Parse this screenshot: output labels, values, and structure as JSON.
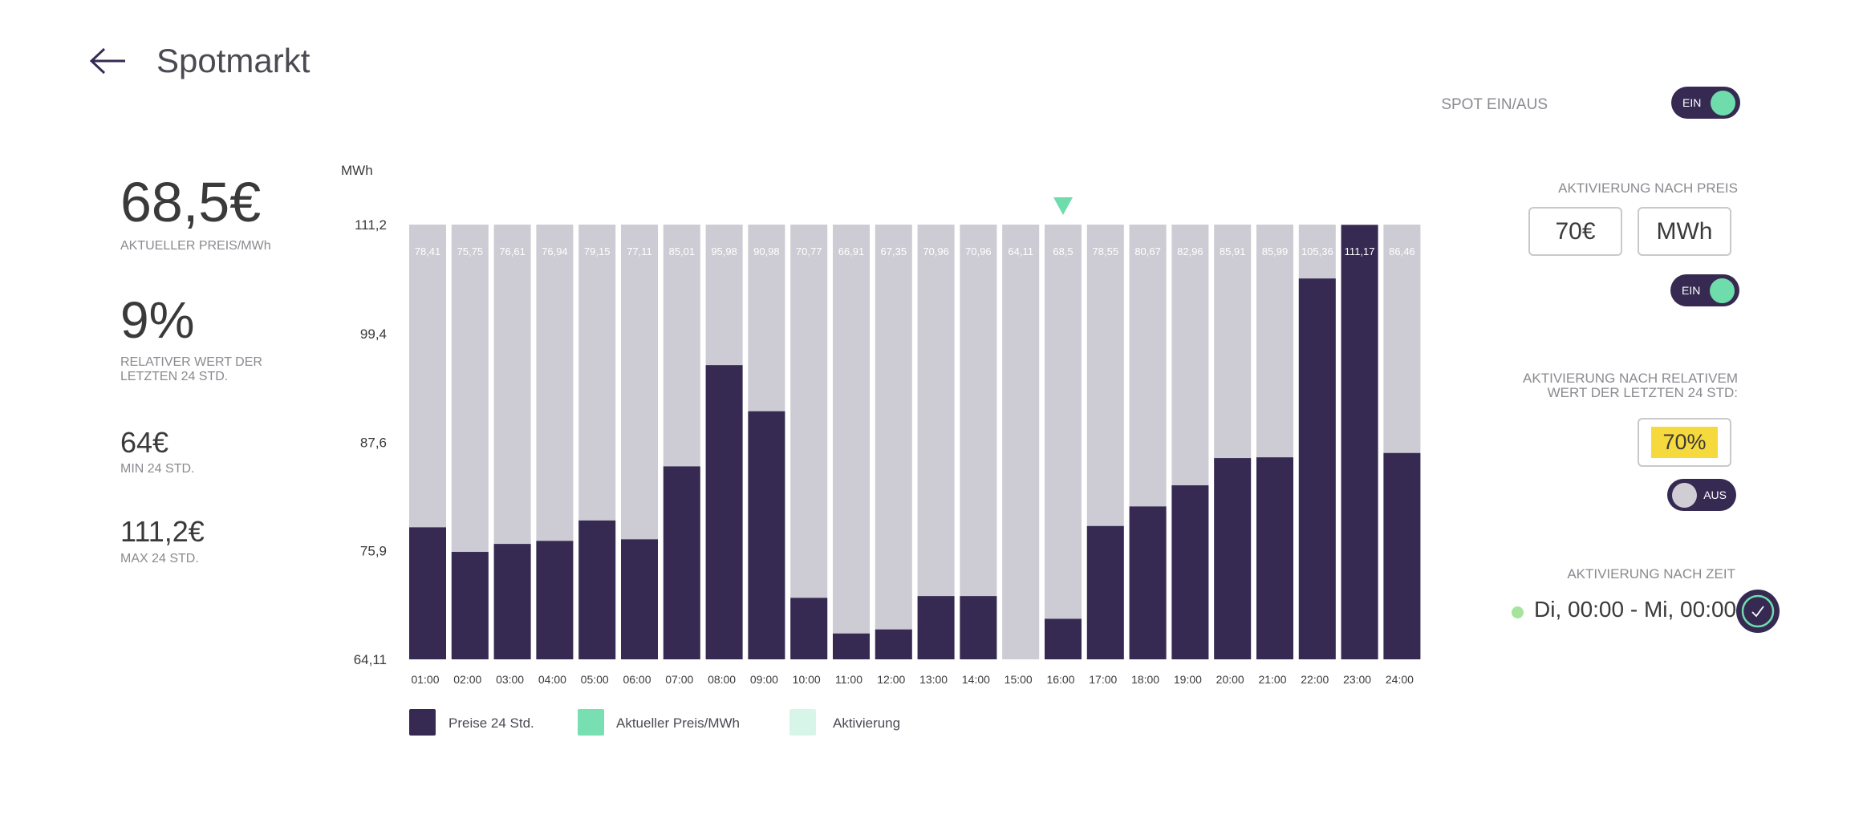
{
  "header": {
    "title": "Spotmarkt"
  },
  "stats": {
    "current_price": {
      "value": "68,5€",
      "label": "AKTUELLER PREIS/MWh"
    },
    "relative": {
      "value": "9%",
      "label_line1": "RELATIVER WERT DER",
      "label_line2": "LETZTEN 24 STD."
    },
    "min": {
      "value": "64€",
      "label": "MIN 24 STD."
    },
    "max": {
      "value": "111,2€",
      "label": "MAX 24 STD."
    }
  },
  "chart_data": {
    "type": "bar",
    "ylabel": "MWh",
    "ylim": [
      64.11,
      111.2
    ],
    "y_ticks": [
      "111,2",
      "99,4",
      "87,6",
      "75,9",
      "64,11"
    ],
    "categories": [
      "01:00",
      "02:00",
      "03:00",
      "04:00",
      "05:00",
      "06:00",
      "07:00",
      "08:00",
      "09:00",
      "10:00",
      "11:00",
      "12:00",
      "13:00",
      "14:00",
      "15:00",
      "16:00",
      "17:00",
      "18:00",
      "19:00",
      "20:00",
      "21:00",
      "22:00",
      "23:00",
      "24:00"
    ],
    "values": [
      78.41,
      75.75,
      76.61,
      76.94,
      79.15,
      77.11,
      85.01,
      95.98,
      90.98,
      70.77,
      66.91,
      67.35,
      70.96,
      70.96,
      64.11,
      68.5,
      78.55,
      80.67,
      82.96,
      85.91,
      85.99,
      105.36,
      111.17,
      86.46
    ],
    "value_labels": [
      "78,41",
      "75,75",
      "76,61",
      "76,94",
      "79,15",
      "77,11",
      "85,01",
      "95,98",
      "90,98",
      "70,77",
      "66,91",
      "67,35",
      "70,96",
      "70,96",
      "64,11",
      "68,5",
      "78,55",
      "80,67",
      "82,96",
      "85,91",
      "85,99",
      "105,36",
      "111,17",
      "86,46"
    ],
    "current_index": 15,
    "series": [
      {
        "name": "Preise 24 Std."
      }
    ],
    "colors": {
      "bar": "#362a52",
      "background_bar": "#cdcbd3",
      "current_marker": "#6fdcac",
      "activation": "#d6f5e9"
    }
  },
  "legend": [
    {
      "label": "Preise 24 Std.",
      "color": "#362a52"
    },
    {
      "label": "Aktueller Preis/MWh",
      "color": "#78dfb3"
    },
    {
      "label": "Aktivierung",
      "color": "#d8f5ea"
    }
  ],
  "controls": {
    "spot": {
      "label": "SPOT EIN/AUS",
      "state": "EIN"
    },
    "price_activation": {
      "label": "AKTIVIERUNG NACH PREIS",
      "price_value": "70€",
      "unit_value": "MWh",
      "state": "EIN"
    },
    "relative_activation": {
      "label_line1": "AKTIVIERUNG NACH RELATIVEM",
      "label_line2": "WERT DER LETZTEN 24 STD:",
      "value": "70%",
      "highlight": "#f6d93c",
      "state": "AUS"
    },
    "time_activation": {
      "label": "AKTIVIERUNG NACH ZEIT",
      "range": "Di, 00:00 - Mi, 00:00"
    }
  }
}
